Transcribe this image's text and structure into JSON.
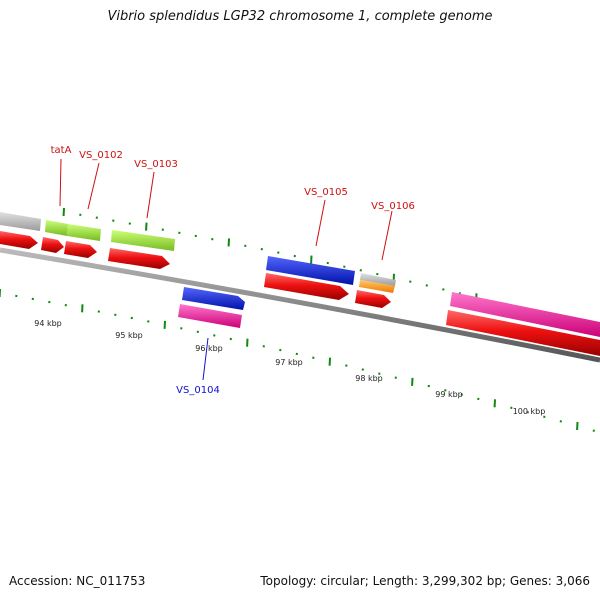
{
  "header": {
    "title": "Vibrio splendidus LGP32 chromosome 1, complete genome"
  },
  "footer": {
    "accession": "Accession: NC_011753",
    "summary": "Topology: circular; Length: 3,299,302 bp; Genes: 3,066"
  },
  "colors": {
    "cds": "#ee1111",
    "tick": "#118811",
    "backbone": "#888888",
    "label_red": "#cc1111",
    "label_blue": "#1111cc",
    "gray_feature": "#bbbbbb",
    "green_feature": "#99ee33",
    "blue_feature": "#1122ee",
    "pink_feature": "#ee2299",
    "orange_feature": "#ff9911"
  },
  "scale_labels": [
    "94 kbp",
    "95 kbp",
    "96 kbp",
    "97 kbp",
    "98 kbp",
    "99 kbp",
    "100 kbp"
  ],
  "gene_labels": [
    {
      "id": "tatA",
      "color": "label_red"
    },
    {
      "id": "VS_0102",
      "color": "label_red"
    },
    {
      "id": "VS_0103",
      "color": "label_red"
    },
    {
      "id": "VS_0104",
      "color": "label_blue"
    },
    {
      "id": "VS_0105",
      "color": "label_red"
    },
    {
      "id": "VS_0106",
      "color": "label_red"
    }
  ]
}
